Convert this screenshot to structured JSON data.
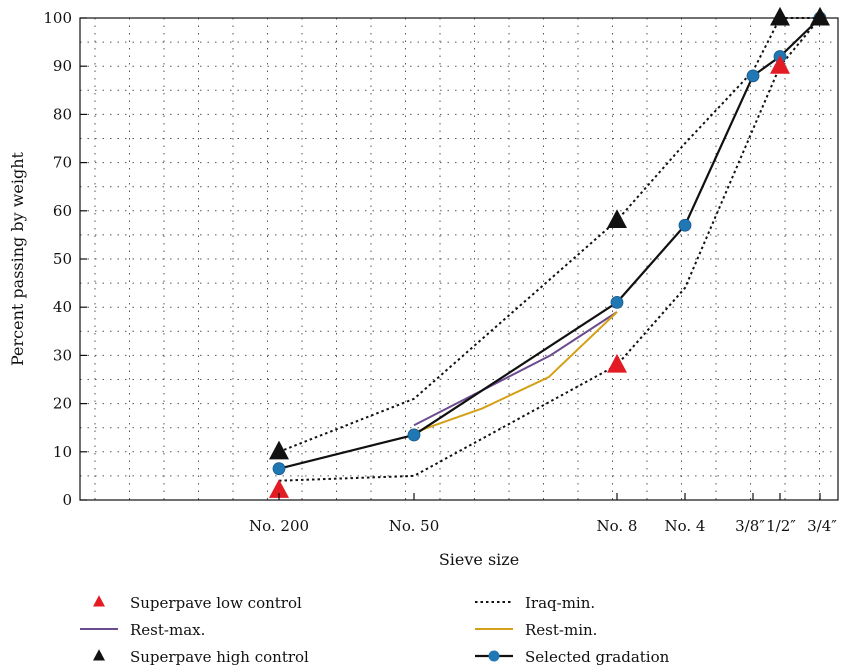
{
  "chart_data": {
    "type": "line",
    "xlabel": "Sieve size",
    "ylabel": "Percent passing by weight",
    "ylim": [
      0,
      100
    ],
    "yticks": [
      0,
      10,
      20,
      30,
      40,
      50,
      60,
      70,
      80,
      90,
      100
    ],
    "x_scale": "log-like (sieve opening)",
    "grid": true,
    "x_ticks": [
      {
        "label": "No. 200",
        "pos": 0.075
      },
      {
        "label": "No. 50",
        "pos": 0.3
      },
      {
        "label": "No. 8",
        "pos": 2.36
      },
      {
        "label": "No. 4",
        "pos": 4.75
      },
      {
        "label": "3/8″",
        "pos": 9.5
      },
      {
        "label": "1/2″",
        "pos": 12.5
      },
      {
        "label": "3/4″",
        "pos": 19
      }
    ],
    "series": [
      {
        "name": "Superpave low control",
        "style": "red-triangle",
        "color": "#e31b23",
        "points": [
          [
            0.075,
            2
          ],
          [
            2.36,
            28
          ],
          [
            12.5,
            90
          ]
        ]
      },
      {
        "name": "Superpave high control",
        "style": "black-triangle",
        "color": "#111111",
        "points": [
          [
            0.075,
            10
          ],
          [
            2.36,
            58
          ],
          [
            12.5,
            100
          ],
          [
            19,
            100
          ]
        ]
      },
      {
        "name": "Iraq-min.",
        "style": "dotted",
        "color": "#111111",
        "group": "iraq",
        "points": [
          [
            0.075,
            4
          ],
          [
            0.3,
            5
          ],
          [
            2.36,
            28
          ],
          [
            4.75,
            44
          ],
          [
            12.5,
            90
          ],
          [
            19,
            100
          ]
        ]
      },
      {
        "style": "dotted",
        "color": "#111111",
        "group": "iraq",
        "points": [
          [
            0.075,
            10
          ],
          [
            0.3,
            21
          ],
          [
            2.36,
            58
          ],
          [
            4.75,
            74
          ],
          [
            9.5,
            89
          ],
          [
            12.5,
            100
          ],
          [
            19,
            100
          ]
        ]
      },
      {
        "name": "Rest-max.",
        "style": "solid",
        "color": "#6b4c8f",
        "points": [
          [
            0.3,
            15.5
          ],
          [
            1.2,
            30
          ],
          [
            2.36,
            39
          ]
        ]
      },
      {
        "name": "Rest-min.",
        "style": "solid",
        "color": "#d4a017",
        "points": [
          [
            0.3,
            14
          ],
          [
            0.6,
            19
          ],
          [
            1.18,
            25.5
          ],
          [
            2.36,
            39
          ]
        ]
      },
      {
        "name": "Selected gradation",
        "style": "line-circle",
        "color": "#1f77b4",
        "points": [
          [
            0.075,
            6.5
          ],
          [
            0.3,
            13.5
          ],
          [
            2.36,
            41
          ],
          [
            4.75,
            57
          ],
          [
            9.5,
            88
          ],
          [
            12.5,
            92
          ],
          [
            19,
            100
          ]
        ]
      }
    ],
    "legend": {
      "placement": "bottom",
      "entries": [
        {
          "label": "Superpave low control",
          "style": "red-triangle",
          "color": "#e31b23"
        },
        {
          "label": "Iraq-min.",
          "style": "dotted",
          "color": "#111111"
        },
        {
          "label": "Rest-max.",
          "style": "solid",
          "color": "#6b4c8f"
        },
        {
          "label": "Rest-min.",
          "style": "solid",
          "color": "#d4a017"
        },
        {
          "label": "Superpave high control",
          "style": "black-triangle",
          "color": "#111111"
        },
        {
          "label": "Selected gradation",
          "style": "line-circle",
          "color": "#1f77b4"
        }
      ]
    }
  }
}
